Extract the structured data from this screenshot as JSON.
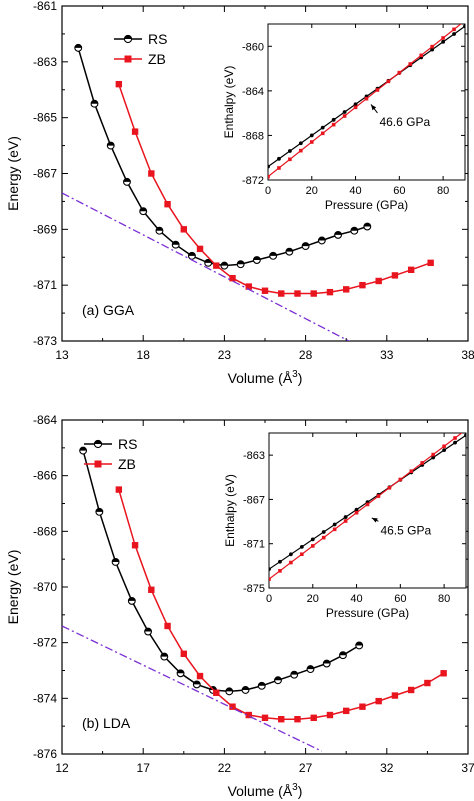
{
  "colors": {
    "rs": "#000000",
    "zb": "#e8141e",
    "tangent": "#7b2fd4"
  },
  "chart_data": [
    {
      "id": "a",
      "type": "line",
      "panel_label": "(a)  GGA",
      "xlabel": "Volume (Å",
      "xlabel_sup": "3",
      "xlabel_end": ")",
      "ylabel": "Energy (eV)",
      "xlim": [
        13,
        38
      ],
      "ylim": [
        -873,
        -861
      ],
      "xticks": [
        "13",
        "18",
        "23",
        "28",
        "33",
        "38"
      ],
      "yticks": [
        "-873",
        "-871",
        "-869",
        "-867",
        "-865",
        "-863",
        "-861"
      ],
      "legend": "top-center",
      "series": [
        {
          "name": "RS",
          "marker": "circle",
          "x": [
            14.0,
            15.0,
            16.0,
            17.0,
            18.0,
            19.0,
            20.0,
            21.0,
            22.0,
            23.0,
            24.0,
            25.0,
            26.0,
            27.0,
            28.0,
            29.0,
            30.0,
            31.0,
            31.8
          ],
          "y": [
            -862.5,
            -864.5,
            -866.0,
            -867.3,
            -868.35,
            -869.05,
            -869.55,
            -869.95,
            -870.2,
            -870.3,
            -870.25,
            -870.1,
            -869.95,
            -869.8,
            -869.6,
            -869.4,
            -869.2,
            -869.05,
            -868.9
          ]
        },
        {
          "name": "ZB",
          "marker": "square",
          "x": [
            16.5,
            17.5,
            18.5,
            19.5,
            20.5,
            21.5,
            22.5,
            23.5,
            24.5,
            25.5,
            26.5,
            27.5,
            28.5,
            29.5,
            30.5,
            31.5,
            32.5,
            33.5,
            34.5,
            35.7
          ],
          "y": [
            -863.8,
            -865.5,
            -867.0,
            -868.1,
            -869.0,
            -869.7,
            -870.3,
            -870.75,
            -871.05,
            -871.2,
            -871.3,
            -871.3,
            -871.3,
            -871.25,
            -871.15,
            -871.0,
            -870.85,
            -870.65,
            -870.45,
            -870.2
          ]
        },
        {
          "name": "",
          "style": "dashdot",
          "x": [
            13.0,
            31.0
          ],
          "y": [
            -867.7,
            -873.1
          ]
        }
      ],
      "inset": {
        "xlabel": "Pressure (GPa)",
        "ylabel": "Enthalpy (eV)",
        "xlim": [
          0,
          90
        ],
        "ylim": [
          -872,
          -858
        ],
        "xticks": [
          "0",
          "20",
          "40",
          "60",
          "80"
        ],
        "yticks": [
          "-872",
          "-868",
          "-864",
          "-860"
        ],
        "annotation": "46.6 GPa",
        "transition": {
          "x": 46.6,
          "y": -864.95
        },
        "series": [
          {
            "name": "RS",
            "x": [
              0,
              90
            ],
            "y": [
              -870.8,
              -858.2
            ]
          },
          {
            "name": "ZB",
            "x": [
              0,
              90
            ],
            "y": [
              -871.7,
              -857.7
            ]
          }
        ]
      }
    },
    {
      "id": "b",
      "type": "line",
      "panel_label": "(b)  LDA",
      "xlabel": "Volume (Å",
      "xlabel_sup": "3",
      "xlabel_end": ")",
      "ylabel": "Energy (eV)",
      "xlim": [
        12,
        37
      ],
      "ylim": [
        -876,
        -864
      ],
      "xticks": [
        "12",
        "17",
        "22",
        "27",
        "32",
        "37"
      ],
      "yticks": [
        "-876",
        "-874",
        "-872",
        "-870",
        "-868",
        "-866",
        "-864"
      ],
      "legend": "top-left",
      "series": [
        {
          "name": "RS",
          "marker": "circle",
          "x": [
            13.3,
            14.3,
            15.3,
            16.3,
            17.3,
            18.3,
            19.3,
            20.3,
            21.3,
            22.3,
            23.3,
            24.3,
            25.3,
            26.3,
            27.3,
            28.3,
            29.3,
            30.3
          ],
          "y": [
            -865.1,
            -867.3,
            -869.1,
            -870.5,
            -871.6,
            -872.5,
            -873.1,
            -873.5,
            -873.7,
            -873.75,
            -873.7,
            -873.55,
            -873.35,
            -873.15,
            -872.95,
            -872.75,
            -872.45,
            -872.1
          ]
        },
        {
          "name": "ZB",
          "marker": "square",
          "x": [
            15.5,
            16.5,
            17.5,
            18.5,
            19.5,
            20.5,
            21.5,
            22.5,
            23.5,
            24.5,
            25.5,
            26.5,
            27.5,
            28.5,
            29.5,
            30.5,
            31.5,
            32.5,
            33.5,
            34.5,
            35.5
          ],
          "y": [
            -866.5,
            -868.5,
            -870.1,
            -871.4,
            -872.4,
            -873.2,
            -873.8,
            -874.3,
            -874.6,
            -874.7,
            -874.75,
            -874.75,
            -874.7,
            -874.6,
            -874.45,
            -874.3,
            -874.1,
            -873.9,
            -873.7,
            -873.45,
            -873.1
          ]
        },
        {
          "name": "",
          "style": "dashdot",
          "x": [
            12.0,
            28.0
          ],
          "y": [
            -871.4,
            -875.9
          ]
        }
      ],
      "inset": {
        "xlabel": "Pressure (GPa)",
        "ylabel": "Enthalpy (eV)",
        "xlim": [
          0,
          90
        ],
        "ylim": [
          -875,
          -861
        ],
        "xticks": [
          "0",
          "20",
          "40",
          "60",
          "80"
        ],
        "yticks": [
          "-875",
          "-871",
          "-867",
          "-863"
        ],
        "annotation": "46.5 GPa",
        "transition": {
          "x": 46.5,
          "y": -868.4
        },
        "series": [
          {
            "name": "RS",
            "x": [
              0,
              90
            ],
            "y": [
              -873.3,
              -861.2
            ]
          },
          {
            "name": "ZB",
            "x": [
              0,
              90
            ],
            "y": [
              -874.2,
              -860.7
            ]
          }
        ]
      }
    }
  ]
}
